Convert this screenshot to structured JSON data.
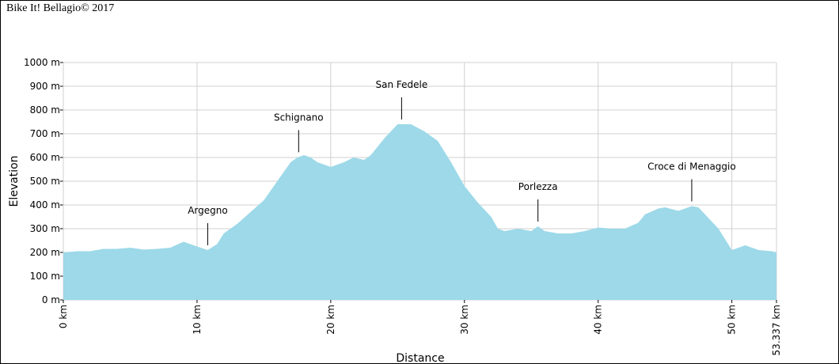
{
  "chart_data": {
    "type": "area",
    "watermark": "Bike It! Bellagio© 2017",
    "x_label": "Distance",
    "y_label": "Elevation",
    "color": "#9dd9e8",
    "grid": true,
    "xlim": [
      0,
      53.337
    ],
    "ylim": [
      0,
      1000
    ],
    "xticks": [
      {
        "value": 0,
        "label": "0 km"
      },
      {
        "value": 10,
        "label": "10 km"
      },
      {
        "value": 20,
        "label": "20 km"
      },
      {
        "value": 30,
        "label": "30 km"
      },
      {
        "value": 40,
        "label": "40 km"
      },
      {
        "value": 50,
        "label": "50 km"
      },
      {
        "value": 53.337,
        "label": "53.337 km"
      }
    ],
    "yticks": [
      {
        "value": 0,
        "label": "0 m"
      },
      {
        "value": 100,
        "label": "100 m"
      },
      {
        "value": 200,
        "label": "200 m"
      },
      {
        "value": 300,
        "label": "300 m"
      },
      {
        "value": 400,
        "label": "400 m"
      },
      {
        "value": 500,
        "label": "500 m"
      },
      {
        "value": 600,
        "label": "600 m"
      },
      {
        "value": 700,
        "label": "700 m"
      },
      {
        "value": 800,
        "label": "800 m"
      },
      {
        "value": 900,
        "label": "900 m"
      },
      {
        "value": 1000,
        "label": "1000 m"
      }
    ],
    "x": [
      0,
      1,
      2,
      3,
      4,
      5,
      6,
      7,
      8,
      9,
      10,
      10.8,
      11.5,
      12,
      13,
      14,
      15,
      16,
      17,
      17.5,
      18,
      18.5,
      19,
      20,
      21,
      21.7,
      22.5,
      23,
      24,
      25,
      26,
      27,
      28,
      29,
      30,
      31,
      32,
      32.5,
      33,
      34,
      35,
      35.5,
      36,
      37,
      38,
      39,
      40,
      41,
      42,
      43,
      43.5,
      44.5,
      45,
      46,
      46.5,
      47,
      47.5,
      48,
      49,
      50,
      51,
      52,
      53,
      53.337
    ],
    "values": [
      200,
      205,
      205,
      215,
      215,
      220,
      212,
      215,
      220,
      245,
      225,
      210,
      235,
      280,
      320,
      370,
      420,
      500,
      580,
      600,
      610,
      600,
      580,
      560,
      580,
      600,
      590,
      610,
      680,
      740,
      740,
      710,
      670,
      580,
      480,
      410,
      350,
      300,
      290,
      300,
      290,
      310,
      290,
      280,
      280,
      290,
      305,
      300,
      300,
      325,
      360,
      385,
      390,
      375,
      385,
      395,
      390,
      360,
      300,
      210,
      230,
      210,
      205,
      200
    ],
    "annotations": [
      {
        "text": "Argegno",
        "x": 10.8
      },
      {
        "text": "Schignano",
        "x": 17.6
      },
      {
        "text": "San Fedele",
        "x": 25.3
      },
      {
        "text": "Porlezza",
        "x": 35.5
      },
      {
        "text": "Croce di Menaggio",
        "x": 47
      }
    ]
  }
}
